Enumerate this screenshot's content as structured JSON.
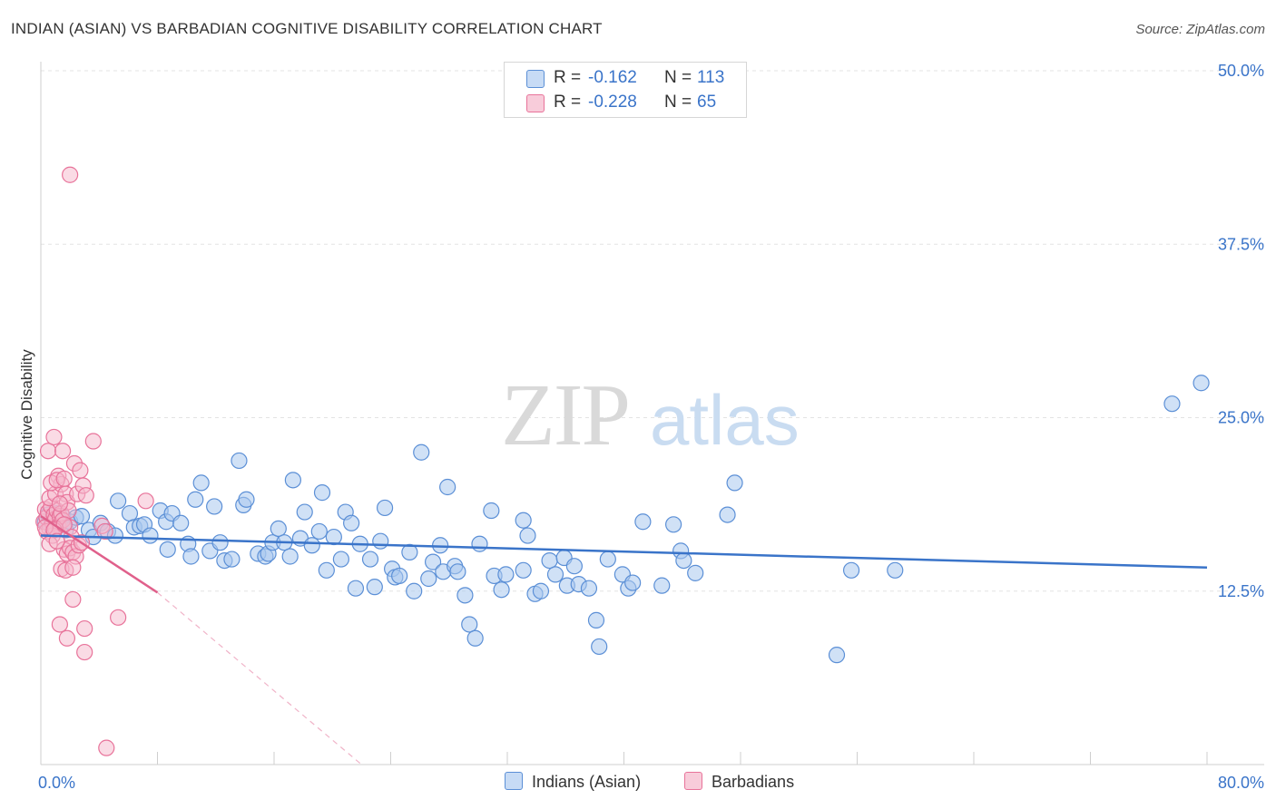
{
  "title": "INDIAN (ASIAN) VS BARBADIAN COGNITIVE DISABILITY CORRELATION CHART",
  "source": "Source: ZipAtlas.com",
  "watermark": {
    "zip": "ZIP",
    "atlas": "atlas"
  },
  "legend": {
    "rows": [
      {
        "r_label": "R =",
        "r_value": "-0.162",
        "n_label": "N =",
        "n_value": "113"
      },
      {
        "r_label": "R =",
        "r_value": "-0.228",
        "n_label": "N =",
        "n_value": "65"
      }
    ]
  },
  "colors": {
    "blue": "#5b8fd6",
    "blue_fill": "#aac8ef",
    "blue_line": "#3a74c9",
    "pink": "#e8739a",
    "pink_fill": "#f5b8cb",
    "pink_line": "#e0608b",
    "axis_label": "#3a74c9"
  },
  "chart_data": {
    "type": "scatter",
    "title": "INDIAN (ASIAN) VS BARBADIAN COGNITIVE DISABILITY CORRELATION CHART",
    "xlabel": "",
    "ylabel": "Cognitive Disability",
    "xlim": [
      0,
      80
    ],
    "ylim": [
      0,
      50
    ],
    "x_tick_labels": [
      "0.0%",
      "80.0%"
    ],
    "y_tick_labels": [
      "12.5%",
      "25.0%",
      "37.5%",
      "50.0%"
    ],
    "y_ticks": [
      12.5,
      25.0,
      37.5,
      50.0
    ],
    "legend_position": "bottom",
    "series": [
      {
        "name": "Indians (Asian)",
        "r": -0.162,
        "n": 113,
        "trend": {
          "x": [
            0,
            80
          ],
          "y": [
            16.5,
            14.2
          ]
        },
        "points": [
          [
            0.3,
            17.5
          ],
          [
            0.5,
            18.0
          ],
          [
            0.7,
            17.2
          ],
          [
            0.8,
            17.8
          ],
          [
            1.0,
            17.6
          ],
          [
            1.1,
            18.1
          ],
          [
            1.3,
            17.4
          ],
          [
            1.5,
            17.9
          ],
          [
            1.7,
            16.9
          ],
          [
            2.0,
            17.5
          ],
          [
            2.4,
            17.8
          ],
          [
            2.8,
            17.9
          ],
          [
            3.3,
            16.9
          ],
          [
            3.6,
            16.4
          ],
          [
            4.1,
            17.4
          ],
          [
            4.6,
            16.8
          ],
          [
            5.1,
            16.5
          ],
          [
            5.3,
            19.0
          ],
          [
            6.1,
            18.1
          ],
          [
            6.4,
            17.1
          ],
          [
            6.8,
            17.2
          ],
          [
            7.1,
            17.3
          ],
          [
            7.5,
            16.5
          ],
          [
            8.2,
            18.3
          ],
          [
            8.6,
            17.5
          ],
          [
            8.7,
            15.5
          ],
          [
            9.0,
            18.1
          ],
          [
            9.6,
            17.4
          ],
          [
            10.1,
            15.9
          ],
          [
            10.3,
            15.0
          ],
          [
            10.6,
            19.1
          ],
          [
            11.0,
            20.3
          ],
          [
            11.6,
            15.4
          ],
          [
            11.9,
            18.6
          ],
          [
            12.3,
            16.0
          ],
          [
            12.6,
            14.7
          ],
          [
            13.1,
            14.8
          ],
          [
            13.6,
            21.9
          ],
          [
            13.9,
            18.7
          ],
          [
            14.1,
            19.1
          ],
          [
            14.9,
            15.2
          ],
          [
            15.4,
            15.0
          ],
          [
            15.6,
            15.2
          ],
          [
            15.9,
            16.0
          ],
          [
            16.3,
            17.0
          ],
          [
            16.7,
            16.0
          ],
          [
            17.1,
            15.0
          ],
          [
            17.3,
            20.5
          ],
          [
            17.8,
            16.3
          ],
          [
            18.1,
            18.2
          ],
          [
            18.6,
            15.8
          ],
          [
            19.1,
            16.8
          ],
          [
            19.3,
            19.6
          ],
          [
            19.6,
            14.0
          ],
          [
            20.1,
            16.4
          ],
          [
            20.6,
            14.8
          ],
          [
            20.9,
            18.2
          ],
          [
            21.3,
            17.4
          ],
          [
            21.6,
            12.7
          ],
          [
            21.9,
            15.9
          ],
          [
            22.6,
            14.8
          ],
          [
            22.9,
            12.8
          ],
          [
            23.3,
            16.1
          ],
          [
            23.6,
            18.5
          ],
          [
            24.1,
            14.1
          ],
          [
            24.3,
            13.5
          ],
          [
            24.6,
            13.6
          ],
          [
            25.3,
            15.3
          ],
          [
            25.6,
            12.5
          ],
          [
            26.1,
            22.5
          ],
          [
            26.6,
            13.4
          ],
          [
            26.9,
            14.6
          ],
          [
            27.4,
            15.8
          ],
          [
            27.6,
            13.9
          ],
          [
            27.9,
            20.0
          ],
          [
            28.4,
            14.3
          ],
          [
            28.6,
            13.9
          ],
          [
            29.1,
            12.2
          ],
          [
            29.4,
            10.1
          ],
          [
            29.8,
            9.1
          ],
          [
            30.1,
            15.9
          ],
          [
            30.9,
            18.3
          ],
          [
            31.1,
            13.6
          ],
          [
            31.6,
            12.6
          ],
          [
            31.9,
            13.7
          ],
          [
            33.1,
            14.0
          ],
          [
            33.1,
            17.6
          ],
          [
            33.4,
            16.5
          ],
          [
            33.9,
            12.3
          ],
          [
            34.3,
            12.5
          ],
          [
            34.9,
            14.7
          ],
          [
            35.3,
            13.7
          ],
          [
            35.9,
            14.9
          ],
          [
            36.1,
            12.9
          ],
          [
            36.6,
            14.3
          ],
          [
            36.9,
            13.0
          ],
          [
            37.6,
            12.7
          ],
          [
            38.1,
            10.4
          ],
          [
            38.3,
            8.5
          ],
          [
            38.9,
            14.8
          ],
          [
            39.9,
            13.7
          ],
          [
            40.3,
            12.7
          ],
          [
            40.6,
            13.1
          ],
          [
            41.3,
            17.5
          ],
          [
            42.6,
            12.9
          ],
          [
            43.4,
            17.3
          ],
          [
            43.9,
            15.4
          ],
          [
            44.1,
            14.7
          ],
          [
            44.9,
            13.8
          ],
          [
            47.1,
            18.0
          ],
          [
            47.6,
            20.3
          ],
          [
            54.6,
            7.9
          ],
          [
            55.6,
            14.0
          ],
          [
            58.6,
            14.0
          ],
          [
            77.6,
            26.0
          ],
          [
            79.6,
            27.5
          ]
        ]
      },
      {
        "name": "Barbadians",
        "r": -0.228,
        "n": 65,
        "trend": {
          "x": [
            0,
            8
          ],
          "y": [
            17.9,
            12.4
          ]
        },
        "trend_dashed": {
          "x": [
            8,
            22
          ],
          "y": [
            12.4,
            0
          ]
        },
        "points": [
          [
            0.2,
            17.5
          ],
          [
            0.3,
            18.4
          ],
          [
            0.4,
            17.8
          ],
          [
            0.5,
            18.2
          ],
          [
            0.6,
            17.0
          ],
          [
            0.7,
            18.6
          ],
          [
            0.8,
            17.4
          ],
          [
            0.9,
            18.0
          ],
          [
            1.0,
            17.7
          ],
          [
            1.1,
            18.3
          ],
          [
            1.2,
            17.2
          ],
          [
            1.3,
            17.9
          ],
          [
            1.4,
            18.1
          ],
          [
            1.5,
            17.6
          ],
          [
            0.4,
            16.8
          ],
          [
            0.6,
            19.2
          ],
          [
            0.8,
            16.5
          ],
          [
            1.0,
            19.5
          ],
          [
            1.2,
            20.8
          ],
          [
            1.4,
            20.2
          ],
          [
            0.5,
            22.6
          ],
          [
            0.9,
            23.6
          ],
          [
            1.5,
            22.6
          ],
          [
            0.7,
            20.3
          ],
          [
            1.1,
            20.5
          ],
          [
            1.6,
            20.6
          ],
          [
            1.7,
            19.5
          ],
          [
            1.8,
            18.9
          ],
          [
            1.9,
            18.3
          ],
          [
            2.0,
            17.1
          ],
          [
            2.1,
            16.4
          ],
          [
            2.3,
            21.7
          ],
          [
            2.5,
            19.5
          ],
          [
            2.7,
            21.2
          ],
          [
            2.9,
            20.1
          ],
          [
            3.1,
            19.4
          ],
          [
            3.6,
            23.3
          ],
          [
            1.6,
            15.5
          ],
          [
            1.8,
            15.2
          ],
          [
            2.0,
            15.6
          ],
          [
            2.2,
            15.3
          ],
          [
            2.4,
            15.0
          ],
          [
            2.6,
            15.8
          ],
          [
            1.4,
            14.1
          ],
          [
            1.7,
            14.0
          ],
          [
            2.2,
            14.2
          ],
          [
            2.2,
            11.9
          ],
          [
            1.3,
            10.1
          ],
          [
            1.8,
            9.1
          ],
          [
            3.0,
            9.8
          ],
          [
            3.0,
            8.1
          ],
          [
            5.3,
            10.6
          ],
          [
            7.2,
            19.0
          ],
          [
            4.2,
            17.2
          ],
          [
            4.4,
            16.8
          ],
          [
            2.0,
            42.5
          ],
          [
            4.5,
            1.2
          ],
          [
            1.0,
            17.0
          ],
          [
            1.3,
            18.8
          ],
          [
            0.3,
            17.1
          ],
          [
            0.9,
            16.9
          ],
          [
            1.6,
            17.3
          ],
          [
            2.8,
            16.0
          ],
          [
            0.6,
            15.9
          ],
          [
            1.1,
            16.1
          ]
        ]
      }
    ]
  }
}
